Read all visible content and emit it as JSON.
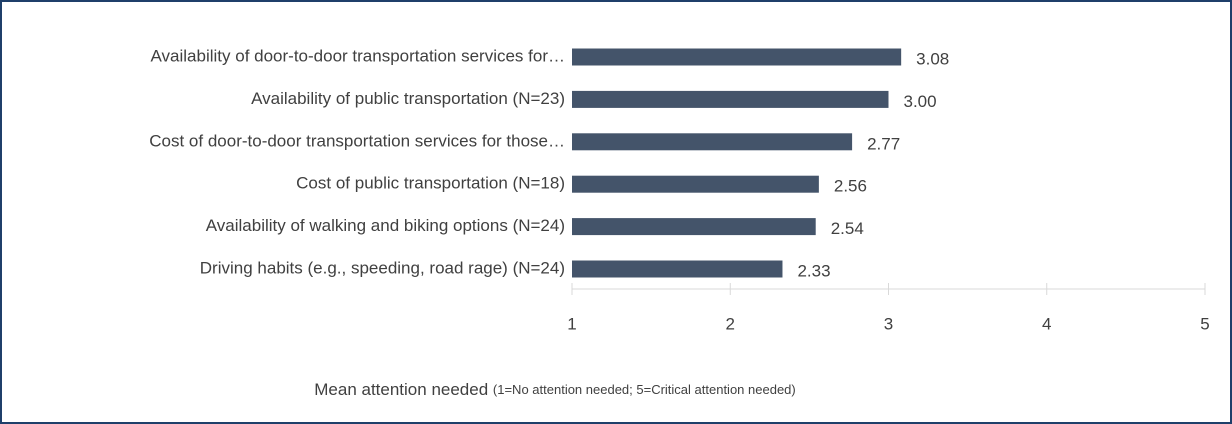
{
  "chart_data": {
    "type": "barh",
    "categories": [
      "Availability of door-to-door transportation services for…",
      "Availability of public transportation (N=23)",
      "Cost of door-to-door transportation services for those…",
      "Cost of public transportation (N=18)",
      "Availability of walking and biking options (N=24)",
      "Driving habits (e.g., speeding, road rage) (N=24)"
    ],
    "values": [
      3.08,
      3.0,
      2.77,
      2.56,
      2.54,
      2.33
    ],
    "value_labels": [
      "3.08",
      "3.00",
      "2.77",
      "2.56",
      "2.54",
      "2.33"
    ],
    "color": "#44546a",
    "xlim": [
      1,
      5
    ],
    "xticks": [
      1,
      2,
      3,
      4,
      5
    ],
    "xlabel": "Mean attention needed",
    "xlabel_note": "(1=No attention needed; 5=Critical attention needed)"
  }
}
